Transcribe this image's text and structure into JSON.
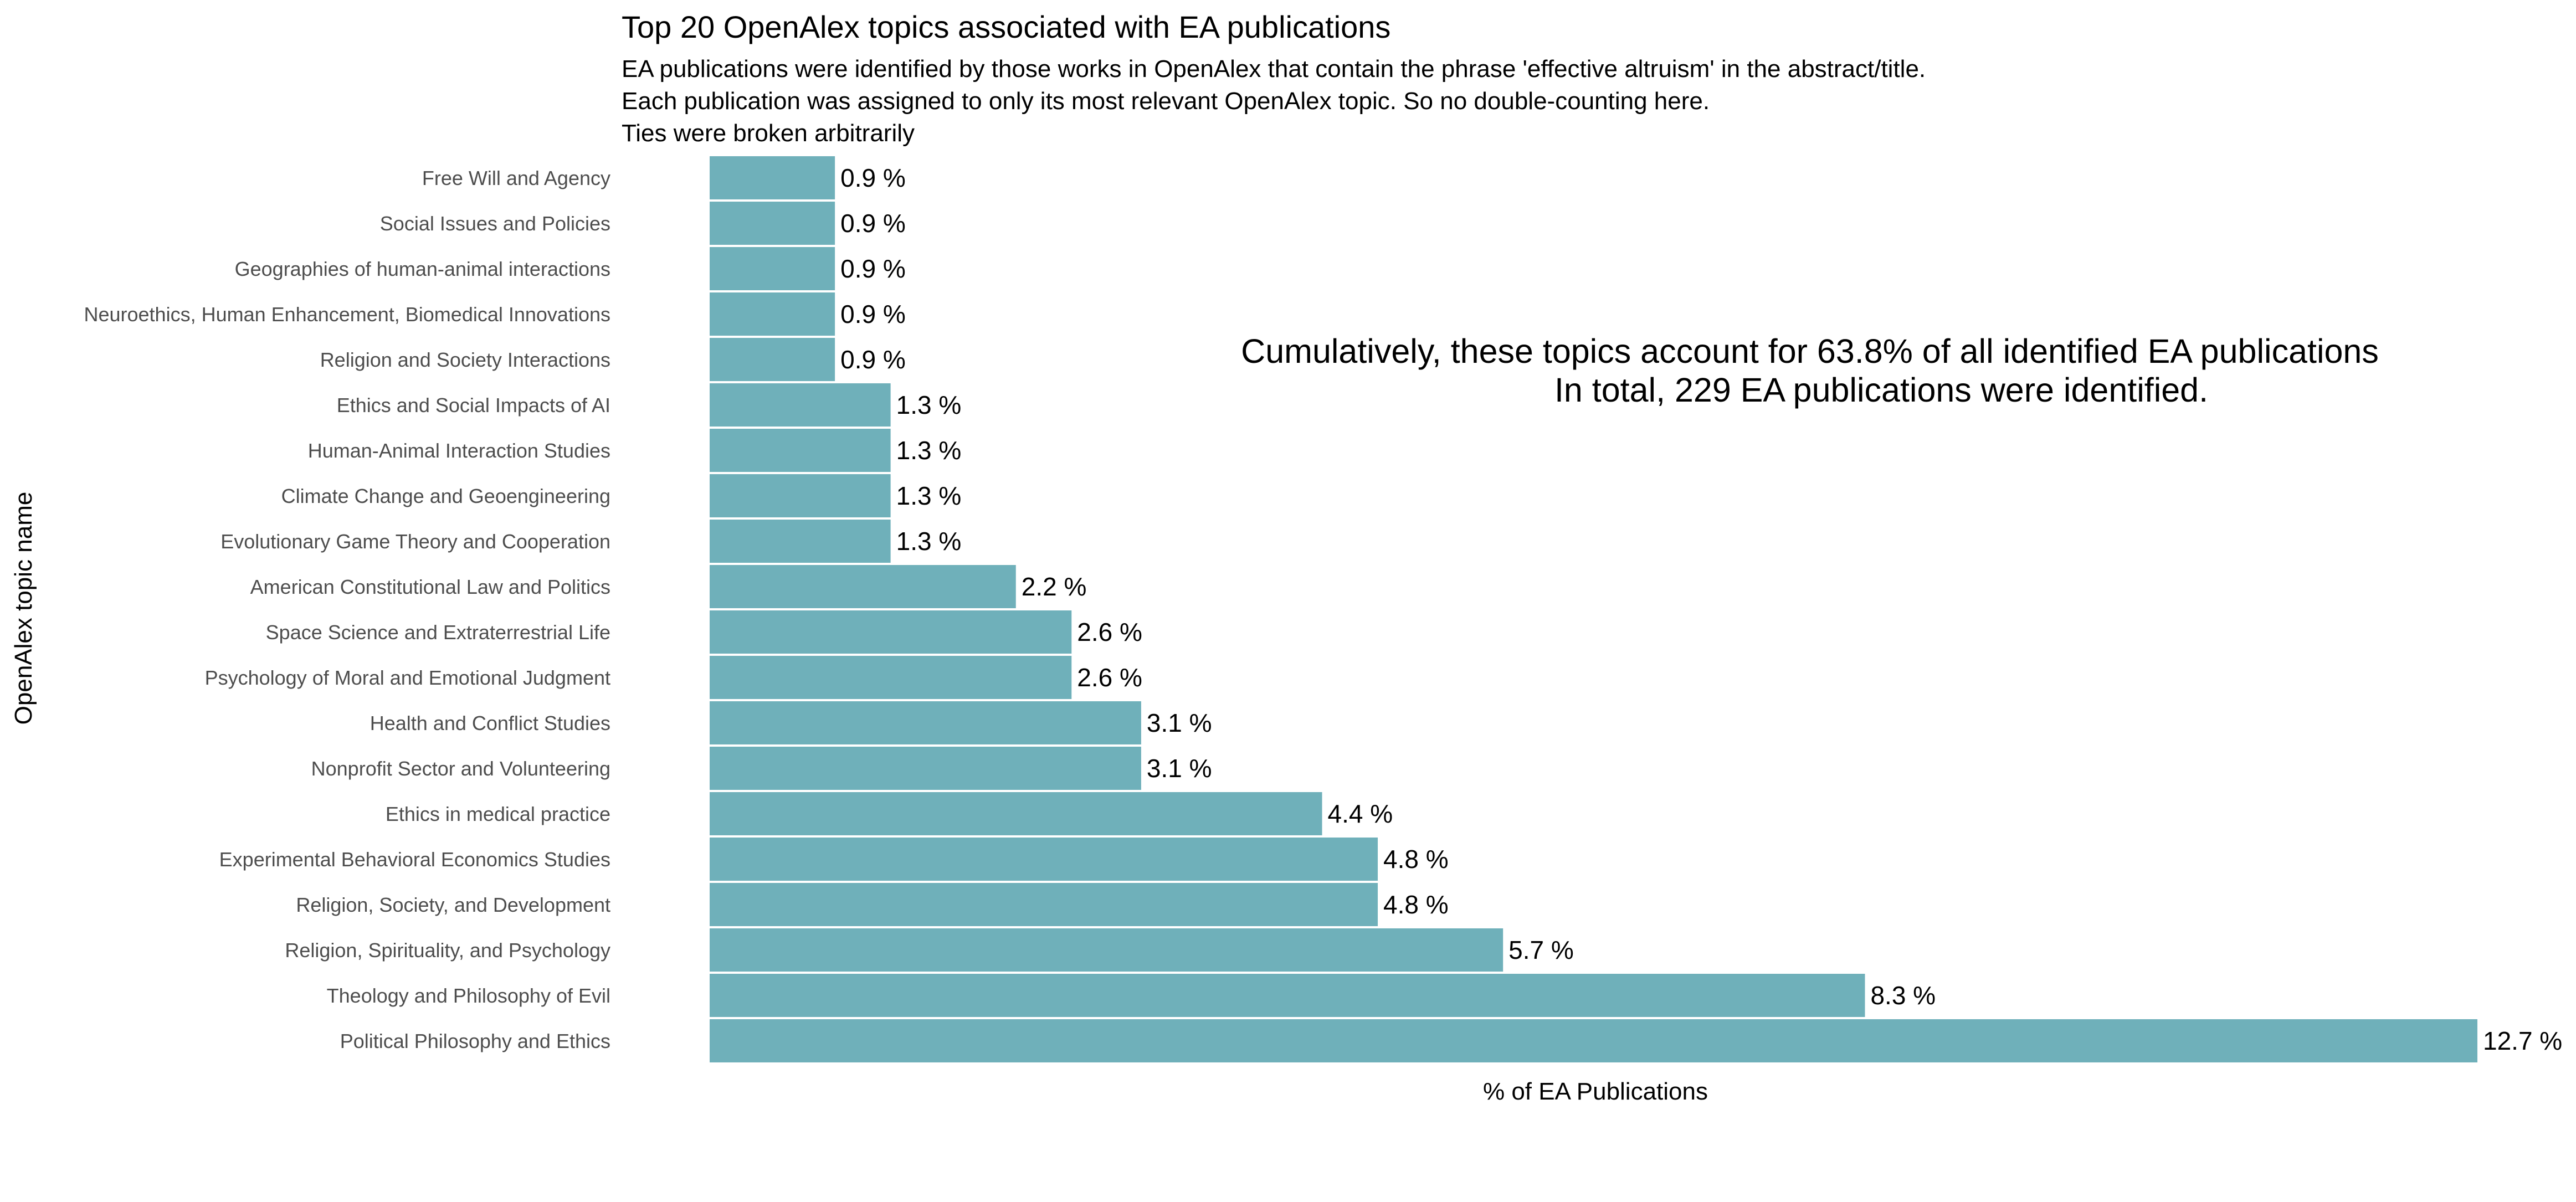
{
  "chart_data": {
    "type": "bar",
    "orientation": "horizontal",
    "title": "Top 20 OpenAlex topics associated with EA publications",
    "subtitle_lines": [
      "EA publications were identified by those works in OpenAlex that contain the phrase 'effective altruism' in the abstract/title.",
      "Each publication was assigned to only its most relevant OpenAlex topic. So no double-counting here.",
      "Ties were broken arbitrarily"
    ],
    "xlabel": "% of EA Publications",
    "ylabel": "OpenAlex topic name",
    "xlim": [
      0,
      12.7
    ],
    "grid": false,
    "bar_color": "#6fb0ba",
    "categories": [
      "Free Will and Agency",
      "Social Issues and Policies",
      "Geographies of human-animal interactions",
      "Neuroethics, Human Enhancement, Biomedical Innovations",
      "Religion and Society Interactions",
      "Ethics and Social Impacts of AI",
      "Human-Animal Interaction Studies",
      "Climate Change and Geoengineering",
      "Evolutionary Game Theory and Cooperation",
      "American Constitutional Law and Politics",
      "Space Science and Extraterrestrial Life",
      "Psychology of Moral and Emotional Judgment",
      "Health and Conflict Studies",
      "Nonprofit Sector and Volunteering",
      "Ethics in medical practice",
      "Experimental Behavioral Economics Studies",
      "Religion, Society, and Development",
      "Religion, Spirituality, and Psychology",
      "Theology and Philosophy of Evil",
      "Political Philosophy and Ethics"
    ],
    "values": [
      0.9,
      0.9,
      0.9,
      0.9,
      0.9,
      1.3,
      1.3,
      1.3,
      1.3,
      2.2,
      2.6,
      2.6,
      3.1,
      3.1,
      4.4,
      4.8,
      4.8,
      5.7,
      8.3,
      12.7
    ],
    "value_labels": [
      "0.9 %",
      "0.9 %",
      "0.9 %",
      "0.9 %",
      "0.9 %",
      "1.3 %",
      "1.3 %",
      "1.3 %",
      "1.3 %",
      "2.2 %",
      "2.6 %",
      "2.6 %",
      "3.1 %",
      "3.1 %",
      "4.4 %",
      "4.8 %",
      "4.8 %",
      "5.7 %",
      "8.3 %",
      "12.7 %"
    ],
    "annotation_lines": [
      "Cumulatively, these topics account for 63.8% of all identified EA publications",
      "In total, 229 EA publications were identified."
    ]
  }
}
